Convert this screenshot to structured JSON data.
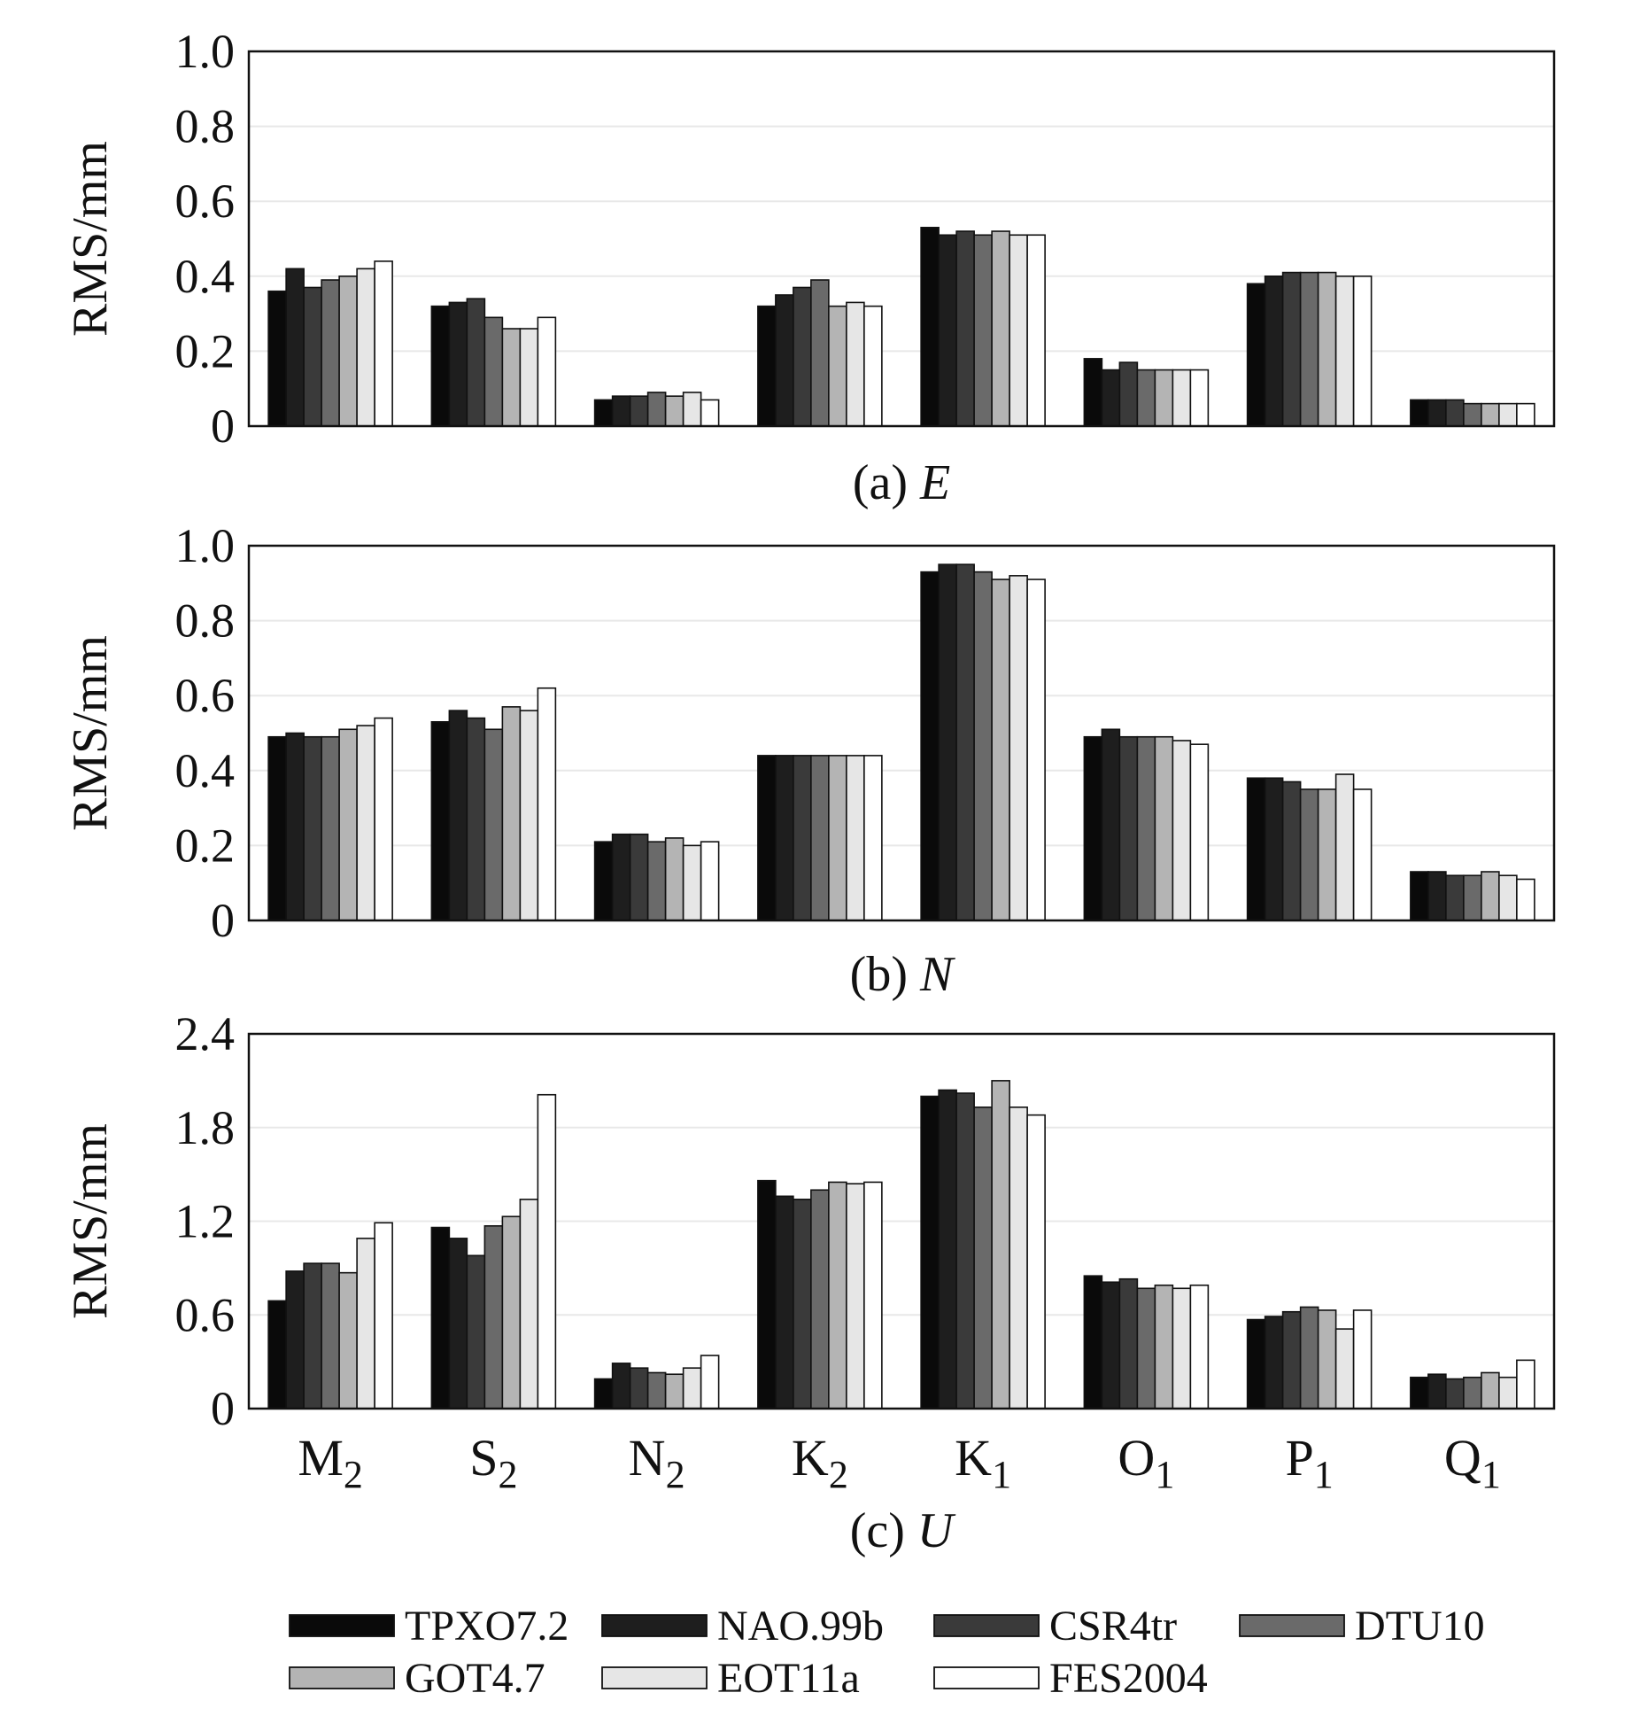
{
  "chart_data": [
    {
      "type": "bar",
      "caption_prefix": "(a) ",
      "caption_var": "E",
      "ylabel": "RMS/mm",
      "ylim": [
        0,
        1.0
      ],
      "yticks": [
        "0",
        "0.2",
        "0.4",
        "0.6",
        "0.8",
        "1.0"
      ],
      "categories": [
        "M2",
        "S2",
        "N2",
        "K2",
        "K1",
        "O1",
        "P1",
        "Q1"
      ],
      "grid": true,
      "series": [
        {
          "name": "TPXO7.2",
          "values": [
            0.36,
            0.32,
            0.07,
            0.32,
            0.53,
            0.18,
            0.38,
            0.07
          ]
        },
        {
          "name": "NAO.99b",
          "values": [
            0.42,
            0.33,
            0.08,
            0.35,
            0.51,
            0.15,
            0.4,
            0.07
          ]
        },
        {
          "name": "CSR4tr",
          "values": [
            0.37,
            0.34,
            0.08,
            0.37,
            0.52,
            0.17,
            0.41,
            0.07
          ]
        },
        {
          "name": "DTU10",
          "values": [
            0.39,
            0.29,
            0.09,
            0.39,
            0.51,
            0.15,
            0.41,
            0.06
          ]
        },
        {
          "name": "GOT4.7",
          "values": [
            0.4,
            0.26,
            0.08,
            0.32,
            0.52,
            0.15,
            0.41,
            0.06
          ]
        },
        {
          "name": "EOT11a",
          "values": [
            0.42,
            0.26,
            0.09,
            0.33,
            0.51,
            0.15,
            0.4,
            0.06
          ]
        },
        {
          "name": "FES2004",
          "values": [
            0.44,
            0.29,
            0.07,
            0.32,
            0.51,
            0.15,
            0.4,
            0.06
          ]
        }
      ]
    },
    {
      "type": "bar",
      "caption_prefix": "(b) ",
      "caption_var": "N",
      "ylabel": "RMS/mm",
      "ylim": [
        0,
        1.0
      ],
      "yticks": [
        "0",
        "0.2",
        "0.4",
        "0.6",
        "0.8",
        "1.0"
      ],
      "categories": [
        "M2",
        "S2",
        "N2",
        "K2",
        "K1",
        "O1",
        "P1",
        "Q1"
      ],
      "grid": true,
      "series": [
        {
          "name": "TPXO7.2",
          "values": [
            0.49,
            0.53,
            0.21,
            0.44,
            0.93,
            0.49,
            0.38,
            0.13
          ]
        },
        {
          "name": "NAO.99b",
          "values": [
            0.5,
            0.56,
            0.23,
            0.44,
            0.95,
            0.51,
            0.38,
            0.13
          ]
        },
        {
          "name": "CSR4tr",
          "values": [
            0.49,
            0.54,
            0.23,
            0.44,
            0.95,
            0.49,
            0.37,
            0.12
          ]
        },
        {
          "name": "DTU10",
          "values": [
            0.49,
            0.51,
            0.21,
            0.44,
            0.93,
            0.49,
            0.35,
            0.12
          ]
        },
        {
          "name": "GOT4.7",
          "values": [
            0.51,
            0.57,
            0.22,
            0.44,
            0.91,
            0.49,
            0.35,
            0.13
          ]
        },
        {
          "name": "EOT11a",
          "values": [
            0.52,
            0.56,
            0.2,
            0.44,
            0.92,
            0.48,
            0.39,
            0.12
          ]
        },
        {
          "name": "FES2004",
          "values": [
            0.54,
            0.62,
            0.21,
            0.44,
            0.91,
            0.47,
            0.35,
            0.11
          ]
        }
      ]
    },
    {
      "type": "bar",
      "caption_prefix": "(c) ",
      "caption_var": "U",
      "ylabel": "RMS/mm",
      "ylim": [
        0,
        2.4
      ],
      "yticks": [
        "0",
        "0.6",
        "1.2",
        "1.8",
        "2.4"
      ],
      "categories": [
        "M2",
        "S2",
        "N2",
        "K2",
        "K1",
        "O1",
        "P1",
        "Q1"
      ],
      "grid": true,
      "series": [
        {
          "name": "TPXO7.2",
          "values": [
            0.69,
            1.16,
            0.19,
            1.46,
            2.0,
            0.85,
            0.57,
            0.2
          ]
        },
        {
          "name": "NAO.99b",
          "values": [
            0.88,
            1.09,
            0.29,
            1.36,
            2.04,
            0.81,
            0.59,
            0.22
          ]
        },
        {
          "name": "CSR4tr",
          "values": [
            0.93,
            0.98,
            0.26,
            1.34,
            2.02,
            0.83,
            0.62,
            0.19
          ]
        },
        {
          "name": "DTU10",
          "values": [
            0.93,
            1.17,
            0.23,
            1.4,
            1.93,
            0.77,
            0.65,
            0.2
          ]
        },
        {
          "name": "GOT4.7",
          "values": [
            0.87,
            1.23,
            0.22,
            1.45,
            2.1,
            0.79,
            0.63,
            0.23
          ]
        },
        {
          "name": "EOT11a",
          "values": [
            1.09,
            1.34,
            0.26,
            1.44,
            1.93,
            0.77,
            0.51,
            0.2
          ]
        },
        {
          "name": "FES2004",
          "values": [
            1.19,
            2.01,
            0.34,
            1.45,
            1.88,
            0.79,
            0.63,
            0.31
          ]
        }
      ]
    }
  ],
  "x_labels": [
    {
      "base": "M",
      "sub": "2"
    },
    {
      "base": "S",
      "sub": "2"
    },
    {
      "base": "N",
      "sub": "2"
    },
    {
      "base": "K",
      "sub": "2"
    },
    {
      "base": "K",
      "sub": "1"
    },
    {
      "base": "O",
      "sub": "1"
    },
    {
      "base": "P",
      "sub": "1"
    },
    {
      "base": "Q",
      "sub": "1"
    }
  ],
  "legend": [
    {
      "name": "TPXO7.2",
      "color": "#0a0a0a"
    },
    {
      "name": "NAO.99b",
      "color": "#1e1e1e"
    },
    {
      "name": "CSR4tr",
      "color": "#3a3a3a"
    },
    {
      "name": "DTU10",
      "color": "#6a6a6a"
    },
    {
      "name": "GOT4.7",
      "color": "#b4b4b4"
    },
    {
      "name": "EOT11a",
      "color": "#e6e6e6"
    },
    {
      "name": "FES2004",
      "color": "#ffffff"
    }
  ]
}
